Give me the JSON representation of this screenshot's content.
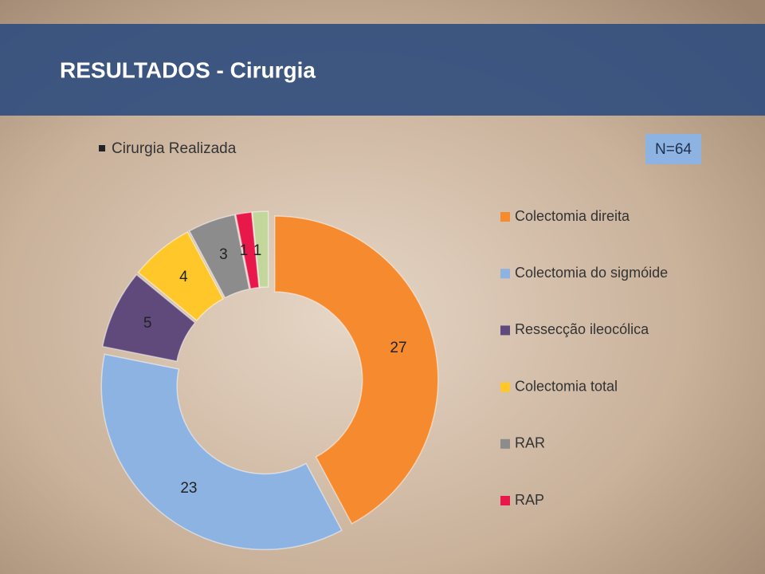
{
  "title": "RESULTADOS - Cirurgia",
  "bullet": "Cirurgia Realizada",
  "n_badge": "N=64",
  "chart_data": {
    "type": "donut",
    "categories": [
      "Colectomia direita",
      "Colectomia do sigmóide",
      "Ressecção ileocólica",
      "Colectomia total",
      "RAR",
      "RAP",
      null
    ],
    "values": [
      27,
      23,
      5,
      4,
      3,
      1,
      1
    ],
    "colors": [
      "#f58a2e",
      "#8db3e2",
      "#604a7b",
      "#ffc729",
      "#8c8c8c",
      "#e8194a",
      "#c3d69b"
    ]
  }
}
